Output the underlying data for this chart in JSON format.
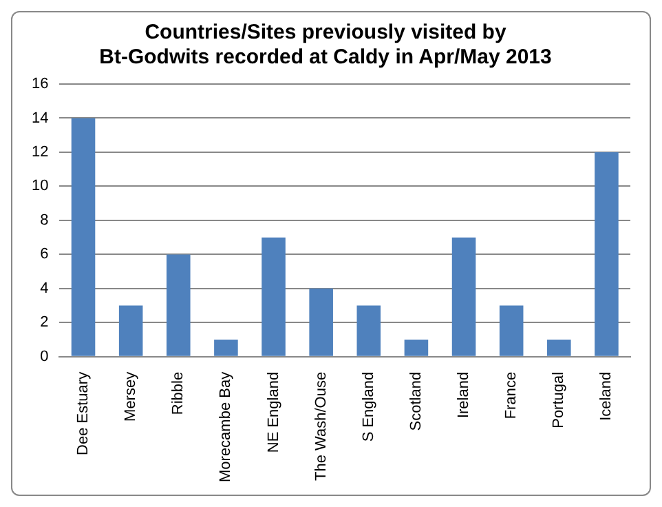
{
  "chart_data": {
    "type": "bar",
    "title": "Countries/Sites previously visited by Bt-Godwits recorded at Caldy in Apr/May 2013",
    "categories": [
      "Dee Estuary",
      "Mersey",
      "Ribble",
      "Morecambe Bay",
      "NE England",
      "The Wash/Ouse",
      "S England",
      "Scotland",
      "Ireland",
      "France",
      "Portugal",
      "Iceland"
    ],
    "values": [
      14,
      3,
      6,
      1,
      7,
      4,
      3,
      1,
      7,
      3,
      1,
      12
    ],
    "color": "#4f81bd",
    "ylim": [
      0,
      16
    ],
    "yticks": [
      0,
      2,
      4,
      6,
      8,
      10,
      12,
      14,
      16
    ],
    "grid": "y",
    "legend": false
  }
}
